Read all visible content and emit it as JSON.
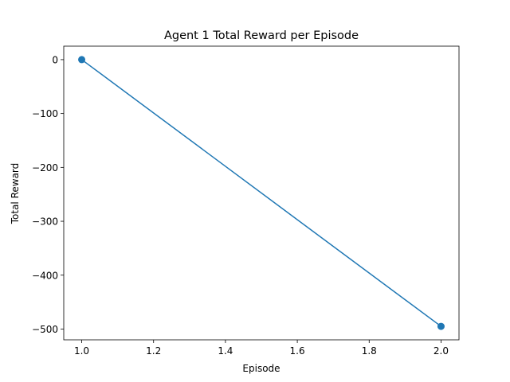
{
  "chart_data": {
    "type": "line",
    "title": "Agent 1 Total Reward per Episode",
    "xlabel": "Episode",
    "ylabel": "Total Reward",
    "x": [
      1.0,
      2.0
    ],
    "series": [
      {
        "values": [
          0,
          -495
        ],
        "color": "#1f77b4",
        "marker": "circle"
      }
    ],
    "xlim": [
      0.95,
      2.05
    ],
    "ylim": [
      -520,
      25
    ],
    "xticks": [
      1.0,
      1.2,
      1.4,
      1.6,
      1.8,
      2.0
    ],
    "xtick_labels": [
      "1.0",
      "1.2",
      "1.4",
      "1.6",
      "1.8",
      "2.0"
    ],
    "yticks": [
      0,
      -100,
      -200,
      -300,
      -400,
      -500
    ],
    "ytick_labels": [
      "0",
      "−100",
      "−200",
      "−300",
      "−400",
      "−500"
    ],
    "grid": false,
    "legend": false
  }
}
